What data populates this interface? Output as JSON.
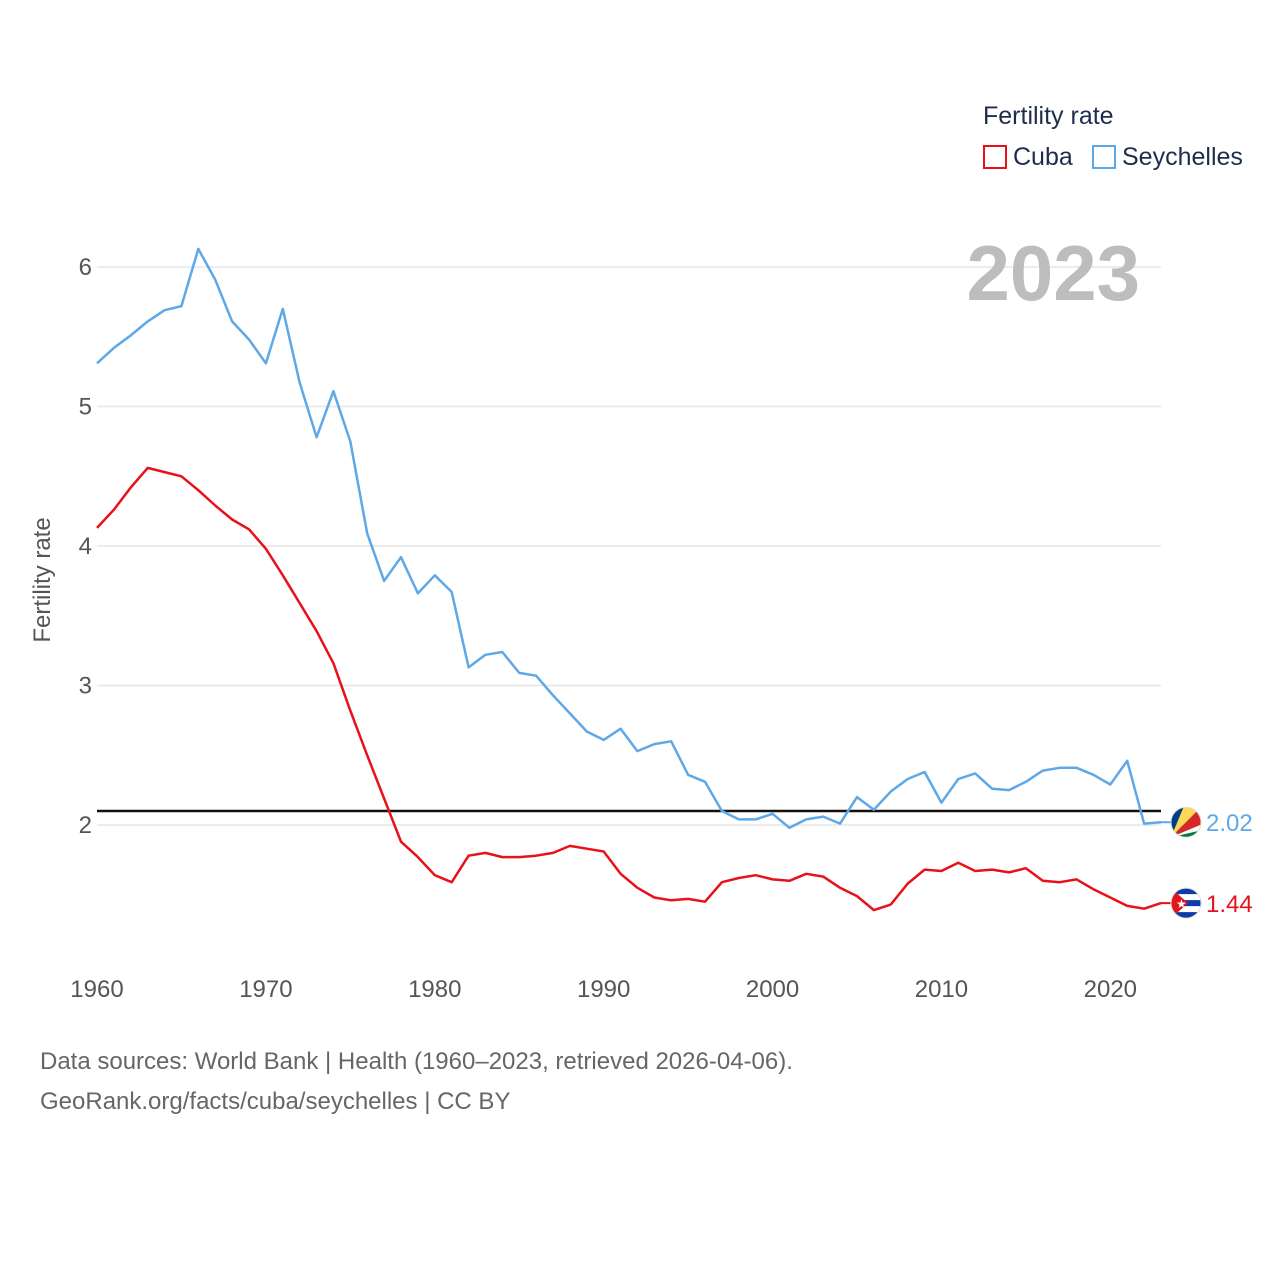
{
  "chart_data": {
    "type": "line",
    "title": "",
    "ylabel": "Fertility rate",
    "xlabel": "",
    "year_label": "2023",
    "xlim": [
      1960,
      2023
    ],
    "ylim": [
      1.0,
      6.5
    ],
    "x_ticks": [
      "1960",
      "1970",
      "1980",
      "1990",
      "2000",
      "2010",
      "2020"
    ],
    "y_ticks": [
      "2",
      "3",
      "4",
      "5",
      "6"
    ],
    "legend_title": "Fertility rate",
    "reference_line": 2.1,
    "x": [
      1960,
      1961,
      1962,
      1963,
      1964,
      1965,
      1966,
      1967,
      1968,
      1969,
      1970,
      1971,
      1972,
      1973,
      1974,
      1975,
      1976,
      1977,
      1978,
      1979,
      1980,
      1981,
      1982,
      1983,
      1984,
      1985,
      1986,
      1987,
      1988,
      1989,
      1990,
      1991,
      1992,
      1993,
      1994,
      1995,
      1996,
      1997,
      1998,
      1999,
      2000,
      2001,
      2002,
      2003,
      2004,
      2005,
      2006,
      2007,
      2008,
      2009,
      2010,
      2011,
      2012,
      2013,
      2014,
      2015,
      2016,
      2017,
      2018,
      2019,
      2020,
      2021,
      2022,
      2023
    ],
    "series": [
      {
        "name": "Cuba",
        "color": "#e8111a",
        "end_label": "1.44",
        "flag": "cuba-flag",
        "values": [
          4.13,
          4.26,
          4.42,
          4.56,
          4.53,
          4.5,
          4.4,
          4.29,
          4.19,
          4.12,
          3.98,
          3.79,
          3.59,
          3.39,
          3.16,
          2.82,
          2.5,
          2.19,
          1.88,
          1.77,
          1.64,
          1.59,
          1.78,
          1.8,
          1.77,
          1.77,
          1.78,
          1.8,
          1.85,
          1.83,
          1.81,
          1.65,
          1.55,
          1.48,
          1.46,
          1.47,
          1.45,
          1.59,
          1.62,
          1.64,
          1.61,
          1.6,
          1.65,
          1.63,
          1.55,
          1.49,
          1.39,
          1.43,
          1.58,
          1.68,
          1.67,
          1.73,
          1.67,
          1.68,
          1.66,
          1.69,
          1.6,
          1.59,
          1.61,
          1.54,
          1.48,
          1.42,
          1.4,
          1.44
        ]
      },
      {
        "name": "Seychelles",
        "color": "#5fa8e8",
        "end_label": "2.02",
        "flag": "seychelles-flag",
        "values": [
          5.31,
          5.42,
          5.51,
          5.61,
          5.69,
          5.72,
          6.13,
          5.91,
          5.61,
          5.48,
          5.31,
          5.7,
          5.17,
          4.78,
          5.11,
          4.75,
          4.09,
          3.75,
          3.92,
          3.66,
          3.79,
          3.67,
          3.13,
          3.22,
          3.24,
          3.09,
          3.07,
          2.93,
          2.8,
          2.67,
          2.61,
          2.69,
          2.53,
          2.58,
          2.6,
          2.36,
          2.31,
          2.1,
          2.04,
          2.04,
          2.08,
          1.98,
          2.04,
          2.06,
          2.01,
          2.2,
          2.11,
          2.24,
          2.33,
          2.38,
          2.16,
          2.33,
          2.37,
          2.26,
          2.25,
          2.31,
          2.39,
          2.41,
          2.41,
          2.36,
          2.29,
          2.46,
          2.01,
          2.02
        ]
      }
    ]
  },
  "footer": {
    "line1": "Data sources: World Bank | Health (1960–2023, retrieved 2026-04-06).",
    "line2": "GeoRank.org/facts/cuba/seychelles | CC BY"
  }
}
